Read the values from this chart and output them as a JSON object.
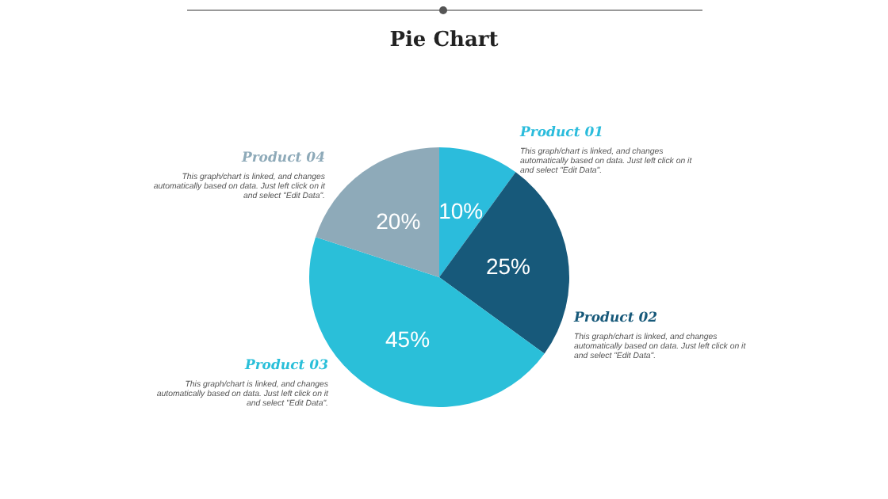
{
  "chart_data": {
    "type": "pie",
    "title": "Pie Chart",
    "categories": [
      "Product 01",
      "Product 02",
      "Product 03",
      "Product 04"
    ],
    "values": [
      10,
      25,
      45,
      20
    ],
    "colors": [
      "#2bbcdc",
      "#17597a",
      "#2abfd9",
      "#8eaab9"
    ],
    "value_labels": [
      "10%",
      "25%",
      "45%",
      "20%"
    ],
    "legend": false,
    "annotations": [
      "This graph/chart is linked, and changes automatically based on data. Just left click on it and select \"Edit Data\".",
      "This graph/chart is linked, and changes automatically based on data. Just left click on it and select \"Edit Data\".",
      "This graph/chart is linked, and changes automatically based on data. Just left click on it and select \"Edit Data\".",
      "This graph/chart is linked, and changes automatically based on data. Just left click on it and select \"Edit Data\"."
    ]
  }
}
